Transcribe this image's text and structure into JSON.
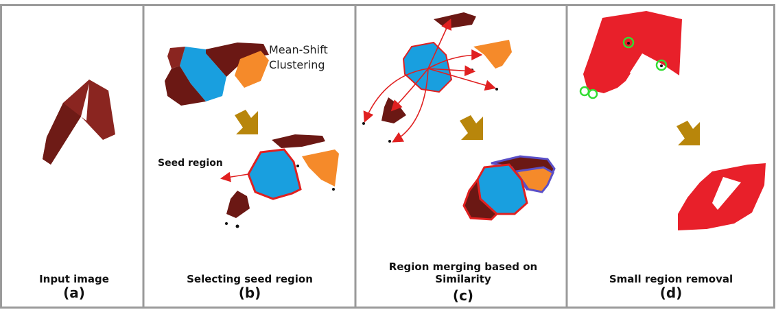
{
  "panels": [
    {
      "id": "a",
      "caption": "Input image",
      "letter": "(a)"
    },
    {
      "id": "b",
      "caption": "Selecting seed region",
      "letter": "(b)"
    },
    {
      "id": "c",
      "caption": "Region merging based on Similarity",
      "letter": "(c)"
    },
    {
      "id": "d",
      "caption": "Small region removal",
      "letter": "(d)"
    }
  ],
  "annotations": {
    "mean_shift": "Mean-Shift\nClustering",
    "seed_region": "Seed region"
  },
  "colors": {
    "dark_red": "#7a1e1a",
    "brown": "#6b1814",
    "blue": "#199fdf",
    "orange": "#f58a2a",
    "red_region": "#e8202a",
    "red_outline": "#e02020",
    "purple_outline": "#5a4fc8",
    "arrow_gold": "#b8860b",
    "circle_green": "#33dd33",
    "panel_border": "#9a9a9a"
  }
}
